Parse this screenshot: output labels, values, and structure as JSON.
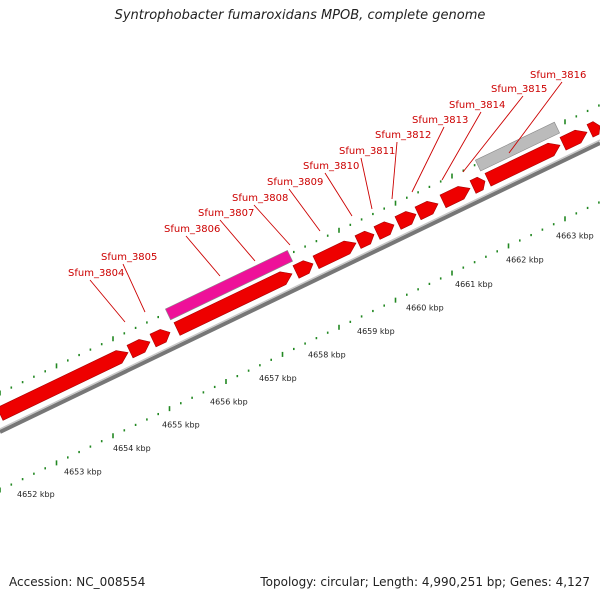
{
  "title": "Syntrophobacter fumaroxidans MPOB, complete genome",
  "accession": "Accession: NC_008554",
  "topology": "Topology: circular; Length: 4,990,251 bp; Genes: 4,127",
  "colors": {
    "gene": "#ee0000",
    "gene_highlight": "#ee1199",
    "gene_other": "#bbbbbb",
    "backbone": "#777777",
    "tick": "#228822",
    "label": "#cc0000"
  },
  "genes": [
    {
      "id": "Sfum_3804"
    },
    {
      "id": "Sfum_3805"
    },
    {
      "id": "Sfum_3806"
    },
    {
      "id": "Sfum_3807"
    },
    {
      "id": "Sfum_3808"
    },
    {
      "id": "Sfum_3809"
    },
    {
      "id": "Sfum_3810"
    },
    {
      "id": "Sfum_3811"
    },
    {
      "id": "Sfum_3812"
    },
    {
      "id": "Sfum_3813"
    },
    {
      "id": "Sfum_3814"
    },
    {
      "id": "Sfum_3815"
    },
    {
      "id": "Sfum_3816"
    }
  ],
  "kbp_labels": [
    "4652 kbp",
    "4653 kbp",
    "4654 kbp",
    "4655 kbp",
    "4656 kbp",
    "4657 kbp",
    "4658 kbp",
    "4659 kbp",
    "4660 kbp",
    "4661 kbp",
    "4662 kbp",
    "4663 kbp"
  ]
}
